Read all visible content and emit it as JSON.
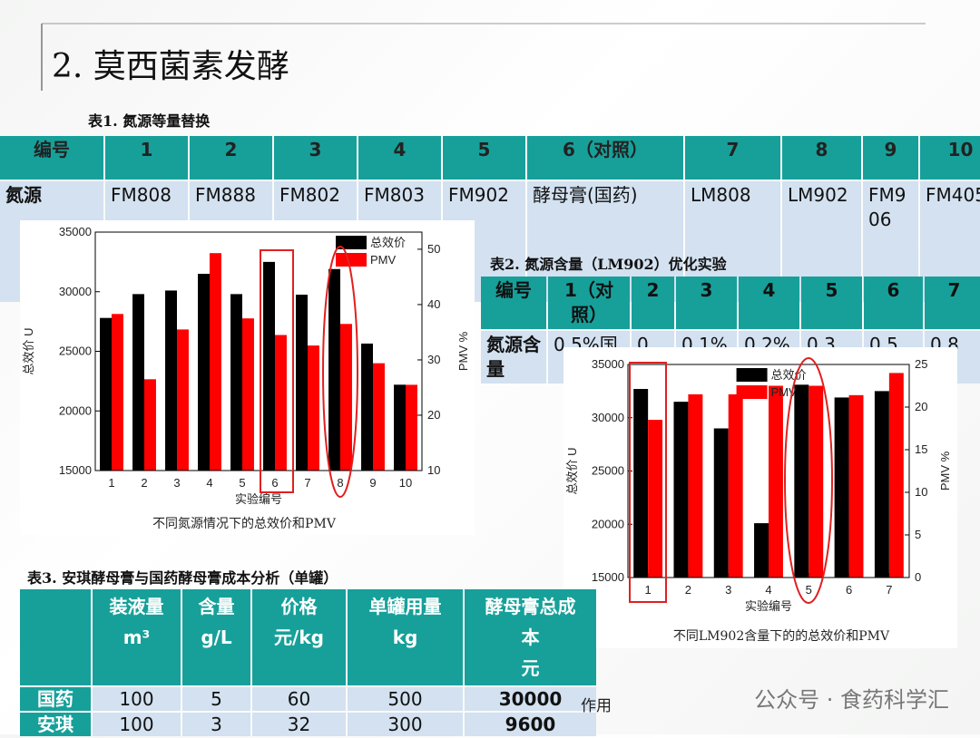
{
  "slide_title": "2. 莫西菌素发酵",
  "table1": {
    "title": "表1. 氮源等量替换",
    "header": [
      "编号",
      "1",
      "2",
      "3",
      "4",
      "5",
      "6（对照）",
      "7",
      "8",
      "9",
      "10"
    ],
    "rows": [
      [
        "氮源",
        "FM808",
        "FM888",
        "FM802",
        "FM803",
        "FM902",
        "酵母膏(国药)",
        "LM808",
        "LM902",
        "FM906",
        "FM405"
      ]
    ]
  },
  "table2": {
    "title": "表2. 氮源含量（LM902）优化实验",
    "header": [
      "编号",
      "1（对照）",
      "2",
      "3",
      "4",
      "5",
      "6",
      "7"
    ],
    "rows": [
      [
        "氮源含量",
        "0.5%国",
        "0",
        "0.1%",
        "0.2%",
        "0.3",
        "0.5",
        "0.8"
      ]
    ]
  },
  "table3": {
    "title": "表3. 安琪酵母膏与国药酵母膏成本分析（单罐）",
    "header": [
      [
        "装液量",
        "m³"
      ],
      [
        "含量",
        "g/L"
      ],
      [
        "价格",
        "元/kg"
      ],
      [
        "单罐用量",
        "kg"
      ],
      [
        "酵母膏总成",
        "本",
        "元"
      ]
    ],
    "rows": [
      [
        "国药",
        100,
        5,
        60,
        500,
        30000
      ],
      [
        "安琪",
        100,
        3,
        32,
        300,
        9600
      ]
    ]
  },
  "footer_fragment": "作用",
  "watermark": "公众号 · 食药科学汇",
  "chart_data": [
    {
      "type": "bar",
      "caption": "不同氮源情况下的总效价和PMV",
      "x_label": "实验编号",
      "y_label": "总效价 U",
      "y2_label": "PMV %",
      "categories": [
        "1",
        "2",
        "3",
        "4",
        "5",
        "6",
        "7",
        "8",
        "9",
        "10"
      ],
      "series": [
        {
          "name": "总效价",
          "color": "#000000",
          "values": [
            27800,
            29800,
            30100,
            31500,
            29800,
            32500,
            29750,
            31900,
            25650,
            22200
          ]
        },
        {
          "name": "PMV",
          "color": "#ff0000",
          "axis": "y2",
          "values": [
            38.3,
            26.5,
            35.5,
            49.3,
            37.5,
            34.5,
            32.6,
            36.5,
            29.4,
            25.5
          ]
        }
      ],
      "ylim": [
        15000,
        35000
      ],
      "yticks": [
        15000,
        20000,
        25000,
        30000,
        35000
      ],
      "y2lim": [
        10,
        53.1
      ],
      "y2ticks": [
        10,
        20,
        30,
        40,
        50
      ],
      "legend": "upper right"
    },
    {
      "type": "bar",
      "caption": "不同LM902含量下的的总效价和PMV",
      "x_label": "实验编号",
      "y_label": "总效价 U",
      "y2_label": "PMV %",
      "categories": [
        "1",
        "2",
        "3",
        "4",
        "5",
        "6",
        "7"
      ],
      "series": [
        {
          "name": "总效价",
          "color": "#000000",
          "values": [
            32700,
            31500,
            29000,
            20100,
            33100,
            31900,
            32500
          ]
        },
        {
          "name": "PMV",
          "color": "#ff0000",
          "axis": "y2",
          "values": [
            18.5,
            21.5,
            21.5,
            22.5,
            22.5,
            21.4,
            24.0
          ]
        }
      ],
      "ylim": [
        15000,
        35000
      ],
      "yticks": [
        15000,
        20000,
        25000,
        30000,
        35000
      ],
      "y2lim": [
        0,
        25
      ],
      "y2ticks": [
        0,
        5,
        10,
        15,
        20,
        25
      ],
      "legend": "upper left"
    }
  ]
}
